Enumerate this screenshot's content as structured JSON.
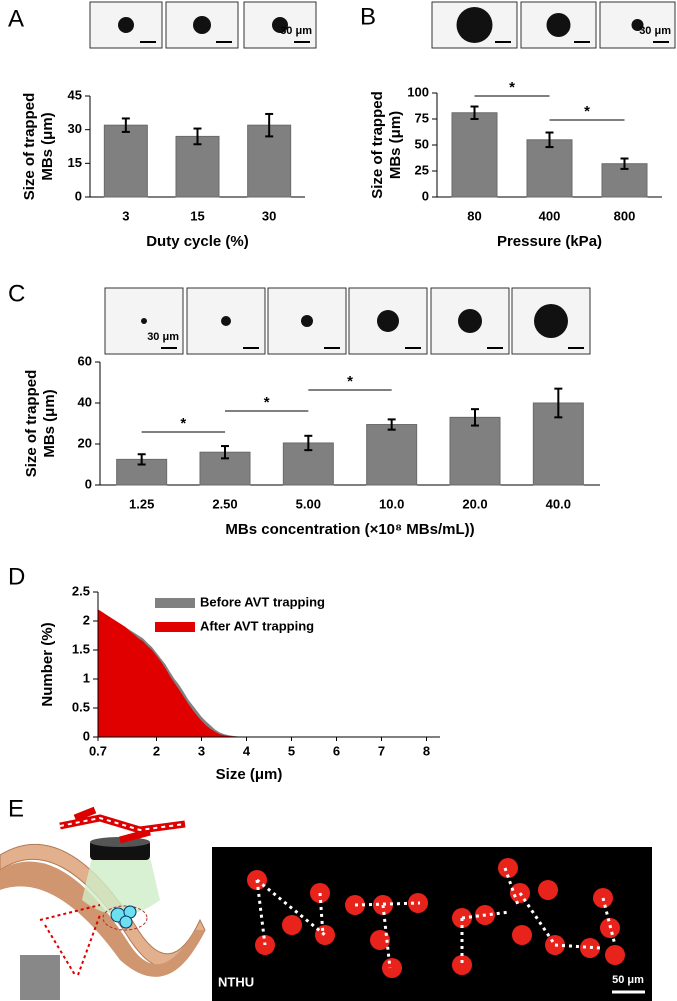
{
  "chart_data": [
    {
      "type": "bar",
      "panel": "A",
      "ylabel": [
        "Size of trapped",
        "MBs (μm)"
      ],
      "xlabel": "Duty cycle (%)",
      "categories": [
        "3",
        "15",
        "30"
      ],
      "values": [
        32,
        27,
        32
      ],
      "errors": [
        3,
        3.5,
        5
      ],
      "color": "#808080",
      "ylim": [
        0,
        45
      ],
      "yticks": [
        0,
        15,
        30,
        45
      ],
      "scale_label": "30 μm",
      "annotations": []
    },
    {
      "type": "bar",
      "panel": "B",
      "ylabel": [
        "Size of trapped",
        "MBs (μm)"
      ],
      "xlabel": "Pressure (kPa)",
      "categories": [
        "80",
        "400",
        "800"
      ],
      "values": [
        81,
        55,
        32
      ],
      "errors": [
        6,
        7,
        5
      ],
      "color": "#808080",
      "ylim": [
        0,
        100
      ],
      "yticks": [
        0,
        25,
        50,
        75,
        100
      ],
      "scale_label": "30 μm",
      "annotations": [
        {
          "text": "*",
          "from": 0,
          "to": 1
        },
        {
          "text": "*",
          "from": 1,
          "to": 2
        }
      ]
    },
    {
      "type": "bar",
      "panel": "C",
      "ylabel": [
        "Size of trapped",
        "MBs (μm)"
      ],
      "xlabel": "MBs concentration (×10⁸ MBs/mL))",
      "categories": [
        "1.25",
        "2.50",
        "5.00",
        "10.0",
        "20.0",
        "40.0"
      ],
      "values": [
        12.5,
        16,
        20.5,
        29.5,
        33,
        40
      ],
      "errors": [
        2.5,
        3,
        3.5,
        2.5,
        4,
        7
      ],
      "color": "#808080",
      "ylim": [
        0,
        60
      ],
      "yticks": [
        0,
        20,
        40,
        60
      ],
      "scale_label": "30 μm",
      "annotations": [
        {
          "text": "*",
          "from": 0,
          "to": 1
        },
        {
          "text": "*",
          "from": 1,
          "to": 2
        },
        {
          "text": "*",
          "from": 2,
          "to": 3
        }
      ]
    },
    {
      "type": "area",
      "panel": "D",
      "ylabel": "Number (%)",
      "xlabel": "Size (μm)",
      "x": [
        0.7,
        0.8,
        0.9,
        1.0,
        1.1,
        1.2,
        1.3,
        1.4,
        1.5,
        1.6,
        1.7,
        1.8,
        1.9,
        2.0,
        2.1,
        2.2,
        2.3,
        2.4,
        2.5,
        2.6,
        2.7,
        2.8,
        2.9,
        3.0,
        3.1,
        3.2,
        3.3,
        3.4,
        3.5,
        3.6,
        3.7,
        3.8,
        3.9,
        4.0
      ],
      "series": [
        {
          "name": "Before AVT trapping",
          "color": "#808080",
          "values": [
            2.2,
            2.15,
            2.1,
            2.05,
            2.0,
            1.95,
            1.9,
            1.85,
            1.8,
            1.75,
            1.7,
            1.62,
            1.55,
            1.45,
            1.35,
            1.25,
            1.12,
            1.0,
            0.9,
            0.78,
            0.65,
            0.55,
            0.45,
            0.35,
            0.27,
            0.2,
            0.13,
            0.08,
            0.05,
            0.03,
            0.02,
            0.01,
            0,
            0
          ]
        },
        {
          "name": "After AVT trapping",
          "color": "#e00000",
          "values": [
            2.2,
            2.15,
            2.1,
            2.05,
            2.0,
            1.95,
            1.9,
            1.83,
            1.77,
            1.7,
            1.65,
            1.57,
            1.5,
            1.4,
            1.3,
            1.18,
            1.05,
            0.93,
            0.82,
            0.7,
            0.58,
            0.47,
            0.37,
            0.28,
            0.2,
            0.14,
            0.09,
            0.05,
            0.03,
            0.02,
            0.01,
            0,
            0,
            0
          ]
        }
      ],
      "xlim": [
        0.7,
        8.3
      ],
      "xticks": [
        0.7,
        2,
        3,
        4,
        5,
        6,
        7,
        8
      ],
      "ylim": [
        0,
        2.5
      ],
      "yticks": [
        0,
        0.5,
        1,
        1.5,
        2,
        2.5
      ]
    }
  ],
  "panel_e": {
    "label": "E",
    "image_label": "NTHU",
    "scale_label": "50 μm"
  }
}
